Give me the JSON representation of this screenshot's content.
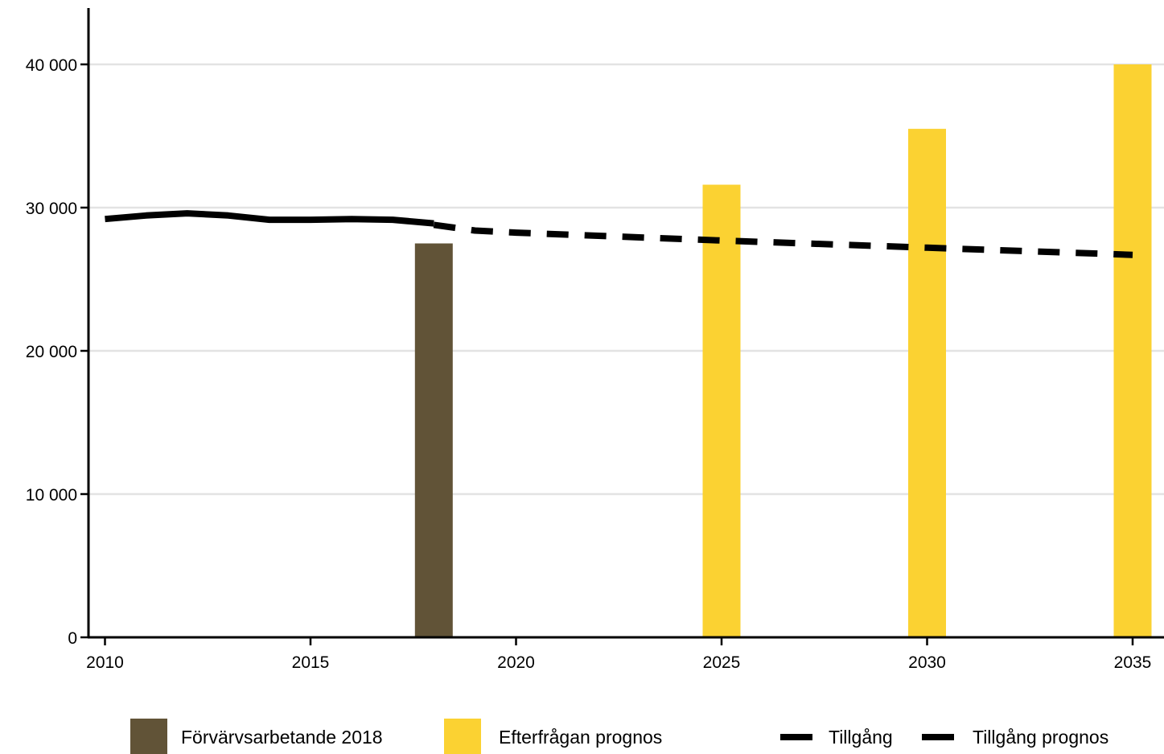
{
  "chart_data": {
    "type": "bar",
    "title": "",
    "xlabel": "",
    "ylabel": "",
    "xlim": [
      2010,
      2036
    ],
    "ylim": [
      0,
      44000
    ],
    "x_ticks": [
      2010,
      2015,
      2020,
      2025,
      2030,
      2035
    ],
    "x_tick_labels": [
      "2010",
      "2015",
      "2020",
      "2025",
      "2030",
      "2035"
    ],
    "y_ticks": [
      0,
      10000,
      20000,
      30000,
      40000
    ],
    "y_tick_labels": [
      "0",
      "10 000",
      "20 000",
      "30 000",
      "40 000"
    ],
    "grid": "horizontal",
    "legend_position": "bottom",
    "series": [
      {
        "name": "Förvärvsarbetande 2018",
        "type": "bar",
        "color": "#615337",
        "points": [
          {
            "x": 2018,
            "y": 27500
          }
        ]
      },
      {
        "name": "Efterfrågan prognos",
        "type": "bar",
        "color": "#fbd232",
        "points": [
          {
            "x": 2025,
            "y": 31600
          },
          {
            "x": 2030,
            "y": 35500
          },
          {
            "x": 2035,
            "y": 40000
          }
        ]
      },
      {
        "name": "Tillgång",
        "type": "line",
        "style": "solid",
        "color": "#000000",
        "points": [
          {
            "x": 2010,
            "y": 29200
          },
          {
            "x": 2011,
            "y": 29450
          },
          {
            "x": 2012,
            "y": 29600
          },
          {
            "x": 2013,
            "y": 29450
          },
          {
            "x": 2014,
            "y": 29150
          },
          {
            "x": 2015,
            "y": 29150
          },
          {
            "x": 2016,
            "y": 29200
          },
          {
            "x": 2017,
            "y": 29150
          },
          {
            "x": 2018,
            "y": 28900
          }
        ]
      },
      {
        "name": "Tillgång prognos",
        "type": "line",
        "style": "dashed",
        "color": "#000000",
        "points": [
          {
            "x": 2018,
            "y": 28800
          },
          {
            "x": 2019,
            "y": 28400
          },
          {
            "x": 2020,
            "y": 28250
          },
          {
            "x": 2025,
            "y": 27700
          },
          {
            "x": 2030,
            "y": 27200
          },
          {
            "x": 2035,
            "y": 26700
          }
        ]
      }
    ]
  }
}
